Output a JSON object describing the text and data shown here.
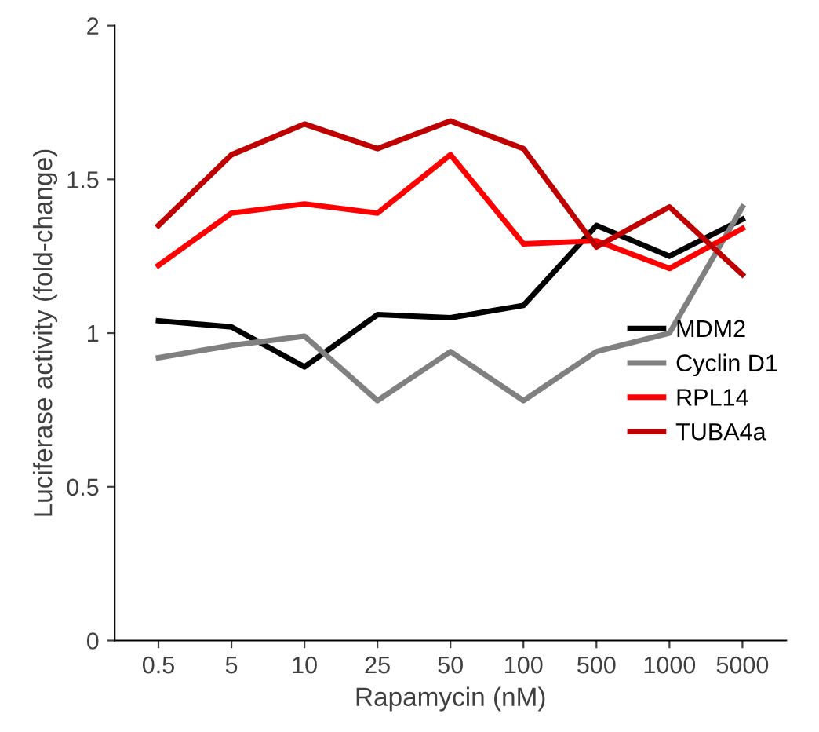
{
  "chart_data": {
    "type": "line",
    "xlabel": "Rapamycin (nM)",
    "ylabel": "Luciferase activity (fold-change)",
    "categories": [
      "0.5",
      "5",
      "10",
      "25",
      "50",
      "100",
      "500",
      "1000",
      "5000"
    ],
    "series": [
      {
        "name": "MDM2",
        "color": "#000000",
        "values": [
          1.04,
          1.02,
          0.89,
          1.06,
          1.05,
          1.09,
          1.35,
          1.25,
          1.37
        ]
      },
      {
        "name": "Cyclin D1",
        "color": "#808080",
        "values": [
          0.92,
          0.96,
          0.99,
          0.78,
          0.94,
          0.78,
          0.94,
          1.0,
          1.41
        ]
      },
      {
        "name": "RPL14",
        "color": "#ff0000",
        "values": [
          1.22,
          1.39,
          1.42,
          1.39,
          1.58,
          1.29,
          1.3,
          1.21,
          1.34
        ]
      },
      {
        "name": "TUBA4a",
        "color": "#c00000",
        "values": [
          1.35,
          1.58,
          1.68,
          1.6,
          1.69,
          1.6,
          1.28,
          1.41,
          1.19
        ]
      }
    ],
    "ylim": [
      0,
      2
    ],
    "yticks": [
      0,
      {
        "value": 0.5,
        "label": "0.5"
      },
      1,
      {
        "value": 1.5,
        "label": "1.5"
      },
      2
    ],
    "grid": false,
    "legend": "right",
    "marker": "none",
    "line_style": "solid"
  }
}
